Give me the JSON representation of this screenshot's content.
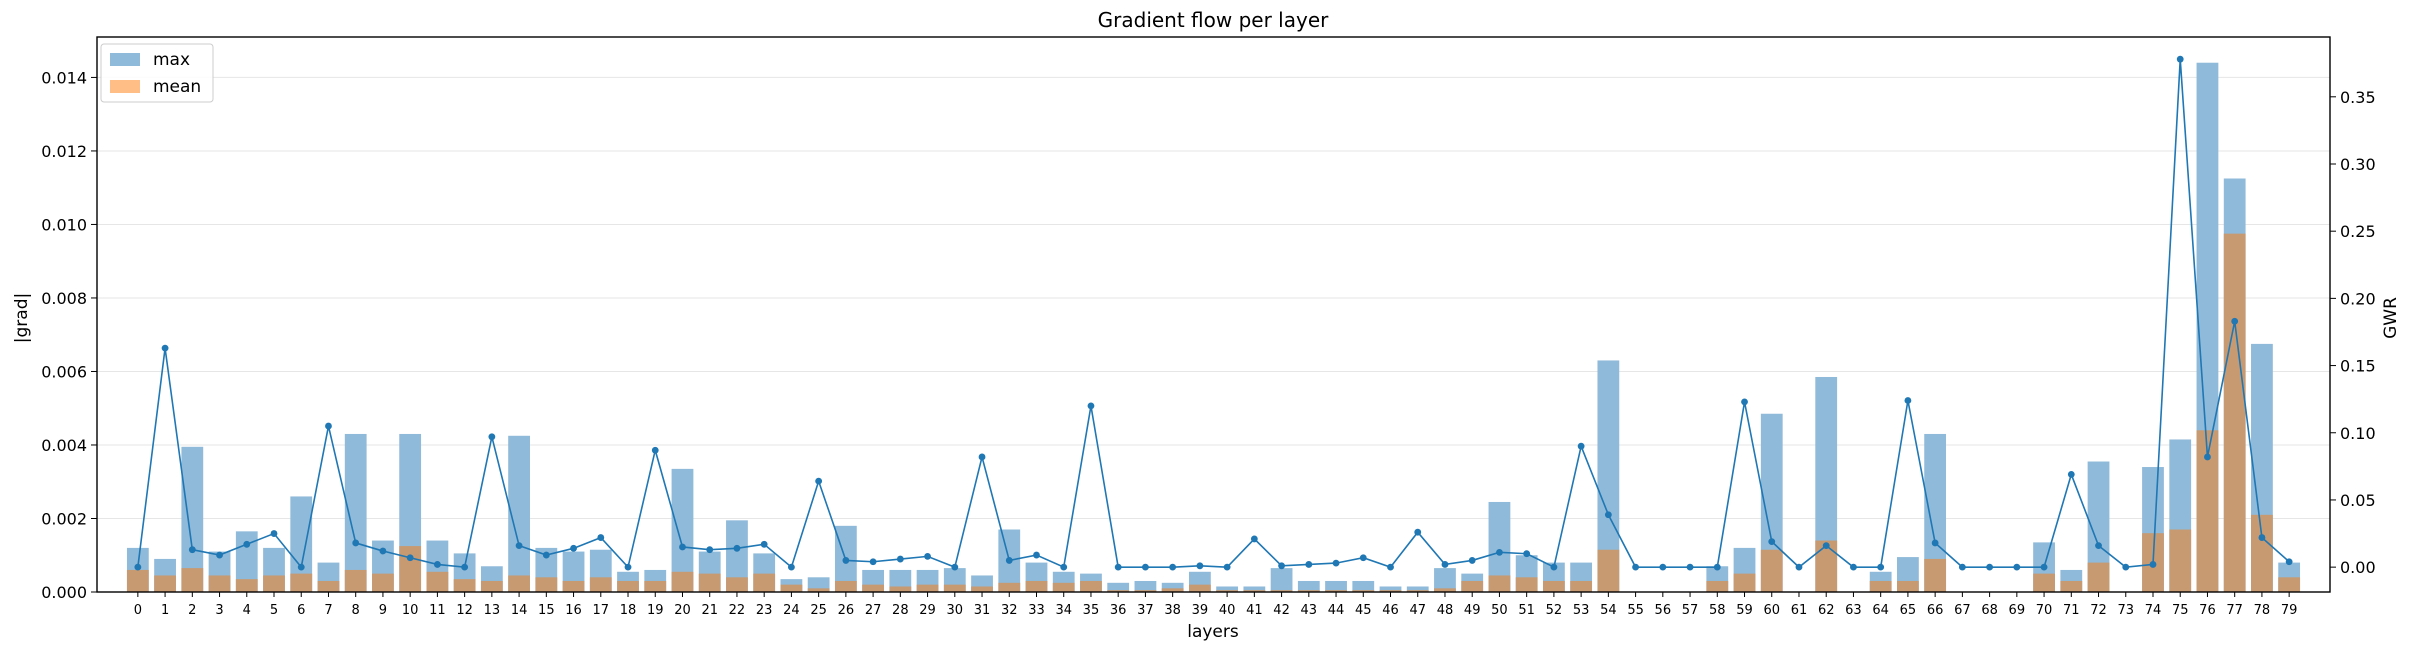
{
  "chart_data": {
    "type": "bar",
    "title": "Gradient flow per layer",
    "xlabel": "layers",
    "ylabel": "|grad|",
    "y2label": "GWR",
    "categories": [
      "0",
      "1",
      "2",
      "3",
      "4",
      "5",
      "6",
      "7",
      "8",
      "9",
      "10",
      "11",
      "12",
      "13",
      "14",
      "15",
      "16",
      "17",
      "18",
      "19",
      "20",
      "21",
      "22",
      "23",
      "24",
      "25",
      "26",
      "27",
      "28",
      "29",
      "30",
      "31",
      "32",
      "33",
      "34",
      "35",
      "36",
      "37",
      "38",
      "39",
      "40",
      "41",
      "42",
      "43",
      "44",
      "45",
      "46",
      "47",
      "48",
      "49",
      "50",
      "51",
      "52",
      "53",
      "54",
      "55",
      "56",
      "57",
      "58",
      "59",
      "60",
      "61",
      "62",
      "63",
      "64",
      "65",
      "66",
      "67",
      "68",
      "69",
      "70",
      "71",
      "72",
      "73",
      "74",
      "75",
      "76",
      "77",
      "78",
      "79"
    ],
    "ylim": [
      0,
      0.0151
    ],
    "y_ticks": [
      0,
      0.002,
      0.004,
      0.006,
      0.008,
      0.01,
      0.012,
      0.014
    ],
    "y_tick_labels": [
      "0.000",
      "0.002",
      "0.004",
      "0.006",
      "0.008",
      "0.010",
      "0.012",
      "0.014"
    ],
    "y2lim": [
      -0.0185,
      0.3945
    ],
    "y2_ticks": [
      0,
      0.05,
      0.1,
      0.15,
      0.2,
      0.25,
      0.3,
      0.35
    ],
    "y2_tick_labels": [
      "0.00",
      "0.05",
      "0.10",
      "0.15",
      "0.20",
      "0.25",
      "0.30",
      "0.35"
    ],
    "grid": "horizontal",
    "legend_position": "top-left",
    "series": [
      {
        "name": "max",
        "kind": "bar",
        "color": "#8fbad9",
        "values": [
          0.0012,
          0.0009,
          0.00395,
          0.0011,
          0.00165,
          0.0012,
          0.0026,
          0.0008,
          0.0043,
          0.0014,
          0.0043,
          0.0014,
          0.00105,
          0.0007,
          0.00425,
          0.0012,
          0.0011,
          0.00115,
          0.00055,
          0.0006,
          0.00335,
          0.0011,
          0.00195,
          0.00105,
          0.00035,
          0.0004,
          0.0018,
          0.0006,
          0.0006,
          0.0006,
          0.00065,
          0.00045,
          0.0017,
          0.0008,
          0.00055,
          0.0005,
          0.00025,
          0.0003,
          0.00025,
          0.00055,
          0.00015,
          0.00015,
          0.00065,
          0.0003,
          0.0003,
          0.0003,
          0.00015,
          0.00015,
          0.00065,
          0.0005,
          0.00245,
          0.001,
          0.0008,
          0.0008,
          0.0063,
          0.0,
          0.0,
          0.0,
          0.0007,
          0.0012,
          0.00485,
          0.0,
          0.00585,
          0.0,
          0.00055,
          0.00095,
          0.0043,
          0.0,
          0.0,
          0.0,
          0.00135,
          0.0006,
          0.00355,
          0.0,
          0.0034,
          0.00415,
          0.0144,
          0.01125,
          0.00675,
          0.0008
        ]
      },
      {
        "name": "mean",
        "kind": "bar",
        "color": "#c79a72",
        "values": [
          0.0006,
          0.00045,
          0.00065,
          0.00045,
          0.00035,
          0.00045,
          0.0005,
          0.0003,
          0.0006,
          0.0005,
          0.00125,
          0.00055,
          0.00035,
          0.0003,
          0.00045,
          0.0004,
          0.0003,
          0.0004,
          0.0003,
          0.0003,
          0.00055,
          0.0005,
          0.0004,
          0.0005,
          0.0002,
          0.0001,
          0.0003,
          0.0002,
          0.00015,
          0.0002,
          0.0002,
          0.00015,
          0.00025,
          0.0003,
          0.00025,
          0.0003,
          5e-05,
          5e-05,
          0.0001,
          0.0002,
          5e-05,
          5e-05,
          5e-05,
          5e-05,
          5e-05,
          5e-05,
          5e-05,
          5e-05,
          0.0001,
          0.0003,
          0.00045,
          0.0004,
          0.0003,
          0.0003,
          0.00115,
          0.0,
          0.0,
          0.0,
          0.0003,
          0.0005,
          0.00115,
          0.0,
          0.0014,
          0.0,
          0.0003,
          0.0003,
          0.0009,
          0.0,
          0.0,
          0.0,
          0.0005,
          0.0003,
          0.0008,
          0.0,
          0.0016,
          0.0017,
          0.0044,
          0.00975,
          0.0021,
          0.0004
        ]
      },
      {
        "name": "GWR",
        "kind": "line",
        "color": "#1f77b4",
        "values": [
          0.0,
          0.163,
          0.013,
          0.009,
          0.017,
          0.025,
          0.0,
          0.105,
          0.018,
          0.012,
          0.007,
          0.002,
          0.0,
          0.097,
          0.016,
          0.009,
          0.014,
          0.022,
          0.0,
          0.087,
          0.015,
          0.013,
          0.014,
          0.017,
          0.0,
          0.064,
          0.005,
          0.004,
          0.006,
          0.008,
          0.0,
          0.082,
          0.005,
          0.009,
          0.0,
          0.12,
          0.0,
          0.0,
          0.0,
          0.001,
          0.0,
          0.021,
          0.001,
          0.002,
          0.003,
          0.007,
          0.0,
          0.026,
          0.002,
          0.005,
          0.011,
          0.01,
          0.0,
          0.09,
          0.039,
          0.0,
          0.0,
          0.0,
          0.0,
          0.123,
          0.019,
          0.0,
          0.016,
          0.0,
          0.0,
          0.124,
          0.018,
          0.0,
          0.0,
          0.0,
          0.0,
          0.069,
          0.016,
          0.0,
          0.002,
          0.378,
          0.082,
          0.183,
          0.022,
          0.004
        ]
      }
    ]
  }
}
